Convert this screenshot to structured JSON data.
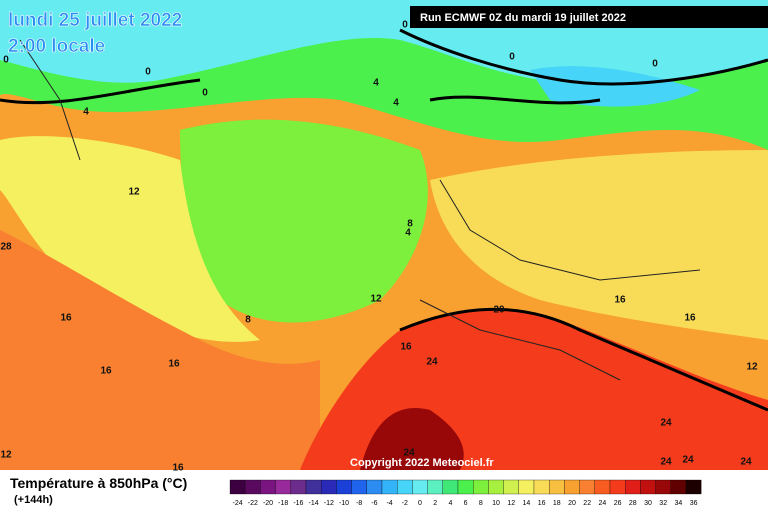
{
  "header": {
    "date": "lundi 25 juillet 2022",
    "time": "2:00 locale",
    "run": "Run ECMWF 0Z du mardi 19 juillet 2022",
    "copyright": "Copyright 2022 Meteociel.fr"
  },
  "legend": {
    "title": "Température à 850hPa (°C)",
    "lead": "(+144h)",
    "ticks": [
      -24,
      -22,
      -20,
      -18,
      -16,
      -14,
      -12,
      -10,
      -8,
      -6,
      -4,
      -2,
      0,
      2,
      4,
      6,
      8,
      10,
      12,
      14,
      16,
      18,
      20,
      22,
      24,
      26,
      28,
      30,
      32,
      34,
      36
    ],
    "colors": [
      "#3c0040",
      "#5a0a5e",
      "#7a1480",
      "#982a9c",
      "#6c2c8c",
      "#40309c",
      "#2a2ab8",
      "#1a40d8",
      "#2064ee",
      "#2c8cf2",
      "#34b4f8",
      "#46d4f8",
      "#66ecf0",
      "#5cf0c0",
      "#40e878",
      "#4cf04c",
      "#7cf03c",
      "#a8f040",
      "#d0f050",
      "#f4f060",
      "#f8dc58",
      "#f8c040",
      "#f8a030",
      "#f88030",
      "#f85c20",
      "#f43c1c",
      "#e02018",
      "#c01010",
      "#980808",
      "#600000",
      "#1c0000"
    ]
  },
  "contour_labels": [
    0,
    0,
    0,
    0,
    0,
    0,
    4,
    4,
    4,
    4,
    12,
    12,
    12,
    8,
    8,
    16,
    16,
    16,
    16,
    16,
    16,
    20,
    24,
    24,
    24,
    24,
    24,
    24,
    28,
    12,
    16
  ]
}
